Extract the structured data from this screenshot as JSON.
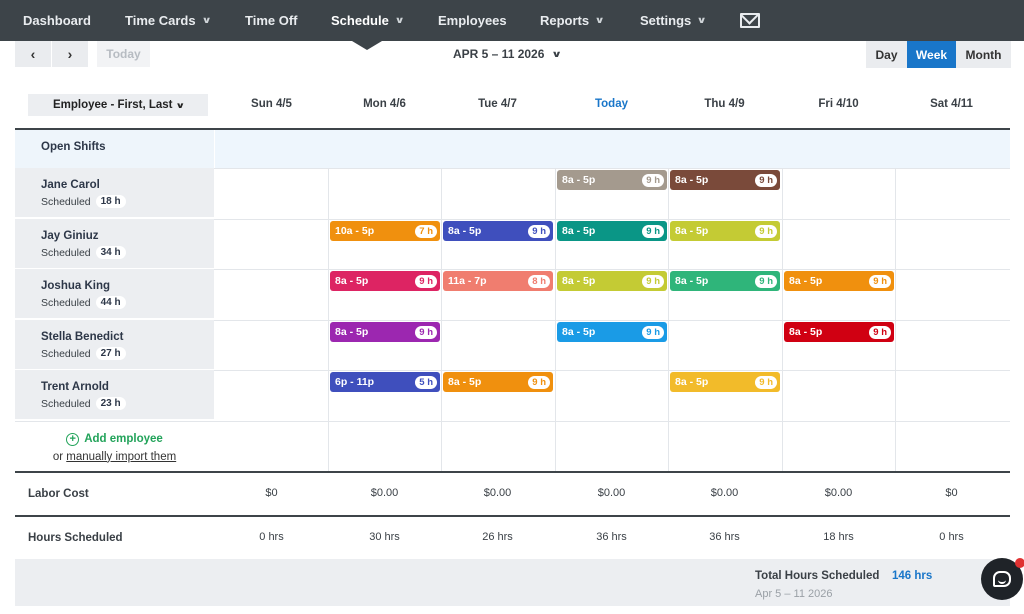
{
  "nav": {
    "dashboard": "Dashboard",
    "time_cards": "Time Cards",
    "time_off": "Time Off",
    "schedule": "Schedule",
    "employees": "Employees",
    "reports": "Reports",
    "settings": "Settings",
    "mail_icon": "envelope-icon"
  },
  "toolbar": {
    "prev": "‹",
    "next": "›",
    "today": "Today",
    "date_range": "APR 5 – 11 2026",
    "views": {
      "day": "Day",
      "week": "Week",
      "month": "Month"
    },
    "active_view": "Week"
  },
  "grid": {
    "sort_label": "Employee - First, Last",
    "days": [
      "Sun 4/5",
      "Mon 4/6",
      "Tue 4/7",
      "Today",
      "Thu 4/9",
      "Fri 4/10",
      "Sat 4/11"
    ],
    "open_shifts_label": "Open Shifts",
    "scheduled_label": "Scheduled"
  },
  "employees": [
    {
      "name": "Jane Carol",
      "hours": "18 h",
      "shifts": [
        {
          "day": 3,
          "time": "8a - 5p",
          "hours": "9 h",
          "color": "#a49a8e"
        },
        {
          "day": 4,
          "time": "8a - 5p",
          "hours": "9 h",
          "color": "#7a4a3a"
        }
      ]
    },
    {
      "name": "Jay Giniuz",
      "hours": "34 h",
      "shifts": [
        {
          "day": 1,
          "time": "10a - 5p",
          "hours": "7 h",
          "color": "#f0900e"
        },
        {
          "day": 2,
          "time": "8a - 5p",
          "hours": "9 h",
          "color": "#3f4fbd"
        },
        {
          "day": 3,
          "time": "8a - 5p",
          "hours": "9 h",
          "color": "#0a9686"
        },
        {
          "day": 4,
          "time": "8a - 5p",
          "hours": "9 h",
          "color": "#c4cb34"
        }
      ]
    },
    {
      "name": "Joshua King",
      "hours": "44 h",
      "shifts": [
        {
          "day": 1,
          "time": "8a - 5p",
          "hours": "9 h",
          "color": "#dd2463"
        },
        {
          "day": 2,
          "time": "11a - 7p",
          "hours": "8 h",
          "color": "#f07d6f"
        },
        {
          "day": 3,
          "time": "8a - 5p",
          "hours": "9 h",
          "color": "#c4cb34"
        },
        {
          "day": 4,
          "time": "8a - 5p",
          "hours": "9 h",
          "color": "#2fb57a"
        },
        {
          "day": 5,
          "time": "8a - 5p",
          "hours": "9 h",
          "color": "#f0900e"
        }
      ]
    },
    {
      "name": "Stella Benedict",
      "hours": "27 h",
      "shifts": [
        {
          "day": 1,
          "time": "8a - 5p",
          "hours": "9 h",
          "color": "#9c27b0"
        },
        {
          "day": 3,
          "time": "8a - 5p",
          "hours": "9 h",
          "color": "#1a9be6"
        },
        {
          "day": 5,
          "time": "8a - 5p",
          "hours": "9 h",
          "color": "#d00012"
        }
      ]
    },
    {
      "name": "Trent Arnold",
      "hours": "23 h",
      "shifts": [
        {
          "day": 1,
          "time": "6p - 11p",
          "hours": "5 h",
          "color": "#3f4fbd"
        },
        {
          "day": 2,
          "time": "8a - 5p",
          "hours": "9 h",
          "color": "#f0900e"
        },
        {
          "day": 4,
          "time": "8a - 5p",
          "hours": "9 h",
          "color": "#f2bb2a"
        }
      ]
    }
  ],
  "add_employee": {
    "label": "Add employee",
    "or_text": "or",
    "import_link": "manually import them"
  },
  "labor_cost": {
    "label": "Labor Cost",
    "values": [
      "$0",
      "$0.00",
      "$0.00",
      "$0.00",
      "$0.00",
      "$0.00",
      "$0"
    ]
  },
  "hours_scheduled": {
    "label": "Hours Scheduled",
    "values": [
      "0 hrs",
      "30 hrs",
      "26 hrs",
      "36 hrs",
      "36 hrs",
      "18 hrs",
      "0 hrs"
    ]
  },
  "totals": {
    "label": "Total Hours Scheduled",
    "value": "146 hrs",
    "range": "Apr 5 – 11 2026"
  },
  "colors": {
    "nav_bg": "#3d4449",
    "accent": "#1976c9",
    "green": "#22a35a"
  }
}
